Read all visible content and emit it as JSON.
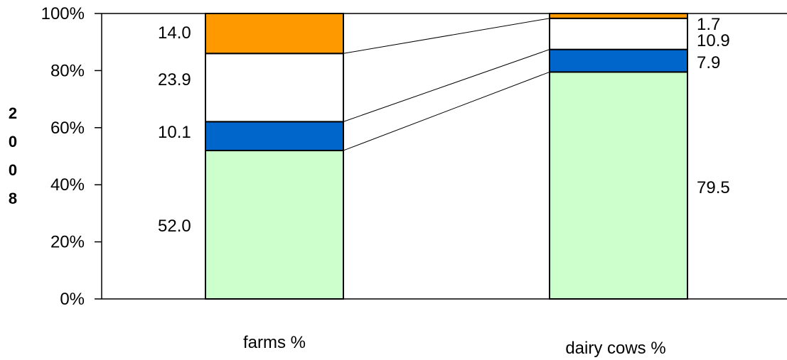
{
  "chart_data": {
    "type": "bar",
    "stacked": true,
    "percent_stacked": true,
    "ylabel": "2008",
    "yticks": [
      "0%",
      "20%",
      "40%",
      "60%",
      "80%",
      "100%"
    ],
    "ylim": [
      0,
      100
    ],
    "categories": [
      "farms %",
      "dairy cows %"
    ],
    "series": [
      {
        "values": [
          52.0,
          79.5
        ],
        "labels": [
          "52.0",
          "79.5"
        ],
        "color": "#ccffcc"
      },
      {
        "values": [
          10.1,
          7.9
        ],
        "labels": [
          "10.1",
          "7.9"
        ],
        "color": "#0066cc"
      },
      {
        "values": [
          23.9,
          10.9
        ],
        "labels": [
          "23.9",
          "10.9"
        ],
        "color": "#ffffff"
      },
      {
        "values": [
          14.0,
          1.7
        ],
        "labels": [
          "14.0",
          "1.7"
        ],
        "color": "#ff9900"
      }
    ],
    "series_lines": true,
    "grid": false,
    "legend": "none"
  }
}
